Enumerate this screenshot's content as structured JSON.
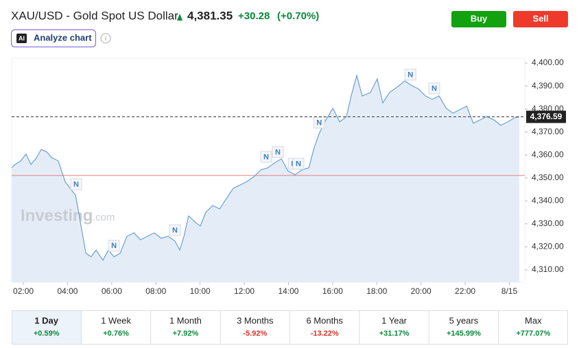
{
  "header": {
    "title": "XAU/USD - Gold Spot US Dollar",
    "price": "4,381.35",
    "change": "+30.28",
    "change_pct": "(+0.70%)"
  },
  "buttons": [
    "Buy",
    "Sell"
  ],
  "analyze": {
    "badge": "AI",
    "label": "Analyze chart"
  },
  "info_icon": "i",
  "chart_data": {
    "type": "line",
    "x": [
      1.47,
      1.63,
      1.88,
      2.12,
      2.34,
      2.56,
      2.81,
      3.06,
      3.27,
      3.58,
      3.89,
      4.11,
      4.36,
      4.61,
      4.83,
      5.07,
      5.29,
      5.6,
      5.85,
      6.1,
      6.38,
      6.69,
      7.0,
      7.31,
      7.62,
      7.93,
      8.24,
      8.55,
      8.86,
      9.08,
      9.27,
      9.48,
      9.8,
      10.01,
      10.26,
      10.57,
      10.88,
      11.19,
      11.5,
      11.81,
      12.12,
      12.43,
      12.75,
      13.06,
      13.37,
      13.68,
      13.99,
      14.3,
      14.61,
      14.92,
      15.17,
      15.39,
      15.7,
      16.01,
      16.32,
      16.63,
      16.84,
      17.09,
      17.34,
      17.71,
      18.02,
      18.27,
      18.58,
      18.89,
      19.27,
      19.58,
      19.89,
      20.2,
      20.51,
      20.82,
      21.14,
      21.45,
      21.75,
      22.07,
      22.37,
      22.68,
      22.99,
      23.3,
      23.61,
      23.93,
      24.24,
      24.45
    ],
    "values": [
      4354.4,
      4355.9,
      4357.4,
      4360.4,
      4355.9,
      4358.3,
      4362.4,
      4361.3,
      4358.9,
      4357.4,
      4348.4,
      4345.5,
      4342.5,
      4329.1,
      4317.2,
      4315.7,
      4318.6,
      4314.2,
      4318.6,
      4315.7,
      4317.2,
      4324.6,
      4326.1,
      4323.1,
      4324.6,
      4326.1,
      4323.7,
      4324.6,
      4322.5,
      4318.6,
      4324.6,
      4333.5,
      4330.6,
      4329.1,
      4335.0,
      4338.0,
      4336.5,
      4341.0,
      4345.5,
      4346.9,
      4348.4,
      4350.5,
      4353.5,
      4354.4,
      4356.5,
      4358.3,
      4352.9,
      4351.4,
      4353.5,
      4354.4,
      4363.3,
      4369.3,
      4375.3,
      4380.3,
      4374.4,
      4376.7,
      4385.7,
      4394.6,
      4385.7,
      4387.2,
      4393.1,
      4382.7,
      4387.2,
      4389.3,
      4392.2,
      4390.2,
      4388.7,
      4385.7,
      4384.2,
      4385.7,
      4380.3,
      4378.2,
      4379.7,
      4381.2,
      4373.8,
      4375.3,
      4376.7,
      4375.3,
      4372.9,
      4374.4,
      4376.2,
      4376.6
    ],
    "color": "#6a9fd4",
    "area_color": "#e4edf7",
    "xlim": [
      1.47,
      24.7
    ],
    "xticks": [
      {
        "value": 2,
        "label": "02:00"
      },
      {
        "value": 4,
        "label": "04:00"
      },
      {
        "value": 6,
        "label": "06:00"
      },
      {
        "value": 8,
        "label": "08:00"
      },
      {
        "value": 10,
        "label": "10:00"
      },
      {
        "value": 12,
        "label": "12:00"
      },
      {
        "value": 14,
        "label": "14:00"
      },
      {
        "value": 16,
        "label": "16:00"
      },
      {
        "value": 18,
        "label": "18:00"
      },
      {
        "value": 20,
        "label": "20:00"
      },
      {
        "value": 22,
        "label": "22:00"
      },
      {
        "value": 24,
        "label": "8/15"
      }
    ],
    "ylim": [
      4304.6,
      4402.1
    ],
    "yticks": [
      {
        "value": 4310,
        "label": "4,310.00"
      },
      {
        "value": 4320,
        "label": "4,320.00"
      },
      {
        "value": 4330,
        "label": "4,330.00"
      },
      {
        "value": 4340,
        "label": "4,340.00"
      },
      {
        "value": 4350,
        "label": "4,350.00"
      },
      {
        "value": 4360,
        "label": "4,360.00"
      },
      {
        "value": 4370,
        "label": "4,370.00"
      },
      {
        "value": 4380,
        "label": "4,380.00"
      },
      {
        "value": 4390,
        "label": "4,390.00"
      },
      {
        "value": 4400,
        "label": "4,400.00"
      }
    ],
    "last_price": {
      "value": 4376.59,
      "label": "4,376.59"
    },
    "reference_line": 4351.07,
    "reference_color": "#e87c7c",
    "news_label": "N",
    "news_markers": [
      4.39,
      6.1,
      8.86,
      12.99,
      13.52,
      14.24,
      14.45,
      15.39,
      19.52,
      20.6
    ],
    "watermark": [
      "Investing",
      ".com"
    ]
  },
  "periods": [
    {
      "label": "1 Day",
      "change": "+0.59%"
    },
    {
      "label": "1 Week",
      "change": "+0.76%"
    },
    {
      "label": "1 Month",
      "change": "+7.92%"
    },
    {
      "label": "3 Months",
      "change": "-5.92%"
    },
    {
      "label": "6 Months",
      "change": "-13.22%"
    },
    {
      "label": "1 Year",
      "change": "+31.17%"
    },
    {
      "label": "5 years",
      "change": "+145.99%"
    },
    {
      "label": "Max",
      "change": "+777.07%"
    }
  ],
  "selected_period": 0
}
